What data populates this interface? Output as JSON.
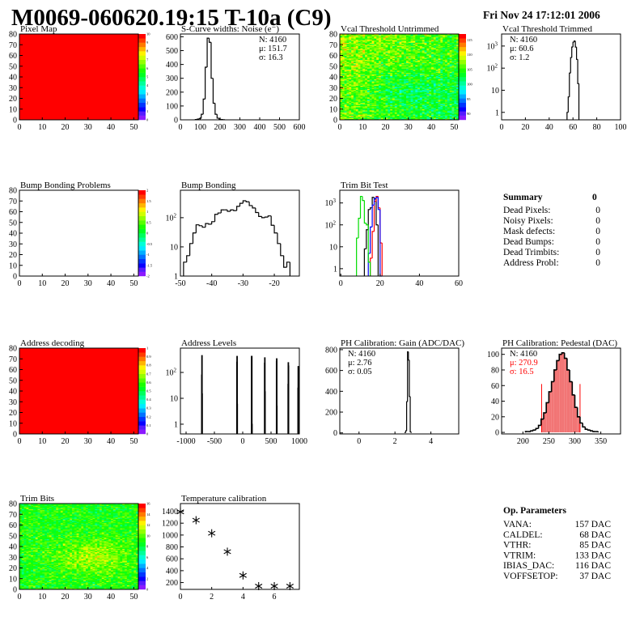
{
  "header": {
    "title": "M0069-060620.19:15 T-10a (C9)",
    "date": "Fri Nov 24 17:12:01 2006"
  },
  "summary": {
    "title": "Summary",
    "total": "0",
    "rows": [
      {
        "label": "Dead Pixels:",
        "value": "0"
      },
      {
        "label": "Noisy Pixels:",
        "value": "0"
      },
      {
        "label": "Mask defects:",
        "value": "0"
      },
      {
        "label": "Dead Bumps:",
        "value": "0"
      },
      {
        "label": "Dead Trimbits:",
        "value": "0"
      },
      {
        "label": "Address Probl:",
        "value": "0"
      }
    ]
  },
  "op_parameters": {
    "title": "Op. Parameters",
    "rows": [
      {
        "label": "VANA:",
        "value": "157 DAC"
      },
      {
        "label": "CALDEL:",
        "value": "68 DAC"
      },
      {
        "label": "VTHR:",
        "value": "85 DAC"
      },
      {
        "label": "VTRIM:",
        "value": "133 DAC"
      },
      {
        "label": "IBIAS_DAC:",
        "value": "116 DAC"
      },
      {
        "label": "VOFFSETOP:",
        "value": "37 DAC"
      }
    ]
  },
  "chart_data": [
    {
      "title": "Pixel Map",
      "type": "heatmap",
      "fill": "uniform",
      "value": 10,
      "xlim": [
        0,
        52
      ],
      "ylim": [
        0,
        80
      ],
      "zlim": [
        0,
        10
      ],
      "xticks": [
        0,
        10,
        20,
        30,
        40,
        50
      ],
      "yticks": [
        0,
        10,
        20,
        30,
        40,
        50,
        60,
        70,
        80
      ],
      "zticks": [
        0,
        1,
        2,
        3,
        4,
        5,
        6,
        7,
        8,
        9,
        10
      ]
    },
    {
      "title": "S-Curve widths: Noise (e⁻)",
      "type": "bar",
      "xlim": [
        0,
        600
      ],
      "ylim": [
        0,
        620
      ],
      "xticks": [
        0,
        100,
        200,
        300,
        400,
        500,
        600
      ],
      "yticks": [
        0,
        100,
        200,
        300,
        400,
        500,
        600
      ],
      "stats": [
        "N: 4160",
        "μ: 151.7",
        "σ: 16.3"
      ],
      "stats_position": "right",
      "series": [
        {
          "color": "#000000",
          "start": 75,
          "width": 10,
          "values": [
            2,
            5,
            10,
            40,
            150,
            380,
            590,
            560,
            300,
            120,
            40,
            12,
            4,
            2,
            1
          ]
        }
      ]
    },
    {
      "title": "Vcal Threshold Untrimmed",
      "type": "heatmap",
      "fill": "noise",
      "mean": 103,
      "spread": 6,
      "xlim": [
        0,
        52
      ],
      "ylim": [
        0,
        80
      ],
      "zlim": [
        88,
        117
      ],
      "xticks": [
        0,
        10,
        20,
        30,
        40,
        50
      ],
      "yticks": [
        0,
        10,
        20,
        30,
        40,
        50,
        60,
        70,
        80
      ],
      "zticks": [
        90,
        95,
        100,
        105,
        110,
        115
      ]
    },
    {
      "title": "Vcal Threshold Trimmed",
      "type": "bar",
      "ylog": true,
      "xlim": [
        0,
        100
      ],
      "ylim": [
        0.46,
        3500
      ],
      "xticks": [
        0,
        20,
        40,
        60,
        80,
        100
      ],
      "yticks": [
        1,
        10,
        100,
        1000
      ],
      "stats": [
        "N: 4160",
        "μ: 60.6",
        "σ:  1.2"
      ],
      "stats_position": "left",
      "series": [
        {
          "color": "#000000",
          "start": 55,
          "width": 1,
          "values": [
            1,
            5,
            60,
            300,
            900,
            1500,
            1700,
            900,
            250,
            20
          ]
        }
      ]
    },
    {
      "title": "Bump Bonding Problems",
      "type": "heatmap",
      "fill": "empty",
      "xlim": [
        0,
        52
      ],
      "ylim": [
        0,
        80
      ],
      "zlim": [
        -2,
        2
      ],
      "xticks": [
        0,
        10,
        20,
        30,
        40,
        50
      ],
      "yticks": [
        0,
        10,
        20,
        30,
        40,
        50,
        60,
        70,
        80
      ],
      "zticks": [
        -2,
        -1.5,
        -1,
        -0.5,
        0,
        0.5,
        1,
        1.5,
        2
      ]
    },
    {
      "title": "Bump Bonding",
      "type": "bar",
      "ylog": true,
      "xlim": [
        -50,
        -12
      ],
      "ylim": [
        1,
        870
      ],
      "xticks": [
        -50,
        -40,
        -30,
        -20
      ],
      "yticks": [
        1,
        10,
        100
      ],
      "series": [
        {
          "color": "#000000",
          "start": -49,
          "width": 1,
          "values": [
            3,
            5,
            13,
            30,
            57,
            53,
            47,
            63,
            60,
            73,
            130,
            145,
            185,
            185,
            165,
            185,
            175,
            245,
            310,
            380,
            350,
            260,
            215,
            150,
            110,
            100,
            105,
            115,
            55,
            30,
            13,
            5,
            2,
            3
          ]
        }
      ]
    },
    {
      "title": "Trim Bit Test",
      "type": "bar",
      "ylog": true,
      "xlim": [
        -0.5,
        60
      ],
      "ylim": [
        0.46,
        3800
      ],
      "xticks": [
        0,
        20,
        40,
        60
      ],
      "yticks": [
        1,
        10,
        100,
        1000
      ],
      "series": [
        {
          "color": "#000000",
          "start": 12,
          "width": 1,
          "values": [
            8,
            60,
            500,
            600,
            1800,
            1500,
            100
          ]
        },
        {
          "color": "#ff0000",
          "start": 15,
          "width": 1,
          "values": [
            3,
            50,
            1200,
            2000,
            600,
            15
          ]
        },
        {
          "color": "#0000ff",
          "start": 14,
          "width": 1,
          "values": [
            5,
            80,
            800,
            1600,
            1800,
            500,
            0
          ]
        },
        {
          "color": "#00dd00",
          "start": 8,
          "width": 1,
          "values": [
            25,
            200,
            2000,
            1300,
            120,
            100,
            2
          ]
        }
      ]
    },
    {
      "title": "Address decoding",
      "type": "heatmap",
      "fill": "uniform",
      "value": 1,
      "xlim": [
        0,
        52
      ],
      "ylim": [
        0,
        80
      ],
      "zlim": [
        0,
        1
      ],
      "xticks": [
        0,
        10,
        20,
        30,
        40,
        50
      ],
      "yticks": [
        0,
        10,
        20,
        30,
        40,
        50,
        60,
        70,
        80
      ],
      "zticks": [
        0,
        0.1,
        0.2,
        0.3,
        0.4,
        0.5,
        0.6,
        0.7,
        0.8,
        0.9,
        1
      ]
    },
    {
      "title": "Address Levels",
      "type": "bar",
      "ylog": true,
      "xlim": [
        -1100,
        1000
      ],
      "ylim": [
        0.42,
        870
      ],
      "xticks": [
        -1000,
        -500,
        0,
        500,
        1000
      ],
      "yticks": [
        1,
        10,
        100
      ],
      "spikes": [
        {
          "x": -725,
          "values": [
            80,
            450,
            15
          ]
        },
        {
          "x": -105,
          "values": [
            250,
            420,
            6
          ]
        },
        {
          "x": 155,
          "values": [
            420,
            420,
            1
          ]
        },
        {
          "x": 385,
          "values": [
            230,
            370,
            18
          ]
        },
        {
          "x": 595,
          "values": [
            270,
            340,
            5
          ]
        },
        {
          "x": 800,
          "values": [
            35,
            240,
            180
          ]
        },
        {
          "x": 975,
          "values": [
            25,
            170
          ]
        }
      ],
      "spike_width": 8
    },
    {
      "title": "PH Calibration: Gain (ADC/DAC)",
      "type": "bar",
      "xlim": [
        -1.07,
        5.55
      ],
      "ylim": [
        -10,
        815
      ],
      "xticks": [
        0,
        2,
        4
      ],
      "yticks": [
        0,
        200,
        400,
        600,
        800
      ],
      "stats": [
        "N: 4160",
        "μ: 2.76",
        "σ: 0.05"
      ],
      "stats_position": "left",
      "series": [
        {
          "color": "#000000",
          "start": 2.55,
          "width": 0.05,
          "values": [
            3,
            20,
            300,
            780,
            700,
            350,
            10
          ]
        }
      ]
    },
    {
      "title": "PH Calibration: Pedestal (DAC)",
      "type": "bar",
      "xlim": [
        159,
        388
      ],
      "ylim": [
        -2,
        108
      ],
      "xticks": [
        200,
        250,
        300,
        350
      ],
      "yticks": [
        0,
        20,
        40,
        60,
        80,
        100
      ],
      "stats": [
        "N: 4160",
        "μ: 270.9",
        "σ: 16.5"
      ],
      "stats_colors": [
        "#000000",
        "#ff0000",
        "#ff0000"
      ],
      "stats_position": "left",
      "fit_range": [
        236,
        310
      ],
      "fit_line_height": 62,
      "series": [
        {
          "color": "#000000",
          "start": 205,
          "width": 5,
          "values": [
            1,
            1,
            2,
            3,
            5,
            9,
            17,
            25,
            38,
            52,
            65,
            80,
            92,
            100,
            102,
            95,
            80,
            65,
            48,
            32,
            20,
            12,
            7,
            4,
            3,
            2,
            1,
            1
          ]
        }
      ]
    },
    {
      "title": "Trim Bits",
      "type": "heatmap",
      "fill": "noise",
      "mean": 9,
      "spread": 3,
      "xlim": [
        0,
        52
      ],
      "ylim": [
        0,
        80
      ],
      "zlim": [
        0,
        16
      ],
      "xticks": [
        0,
        10,
        20,
        30,
        40,
        50
      ],
      "yticks": [
        0,
        10,
        20,
        30,
        40,
        50,
        60,
        70,
        80
      ],
      "zticks": [
        0,
        2,
        4,
        6,
        8,
        10,
        12,
        14,
        16
      ]
    },
    {
      "title": "Temperature calibration",
      "type": "scatter",
      "xlim": [
        0,
        7.6
      ],
      "ylim": [
        85,
        1530
      ],
      "xticks": [
        0,
        2,
        4,
        6
      ],
      "yticks": [
        200,
        400,
        600,
        800,
        1000,
        1200,
        1400
      ],
      "x": [
        0,
        1,
        2,
        3,
        4,
        5,
        6,
        7
      ],
      "y": [
        1390,
        1250,
        1030,
        720,
        320,
        140,
        140,
        140
      ],
      "marker": "asterisk"
    }
  ]
}
